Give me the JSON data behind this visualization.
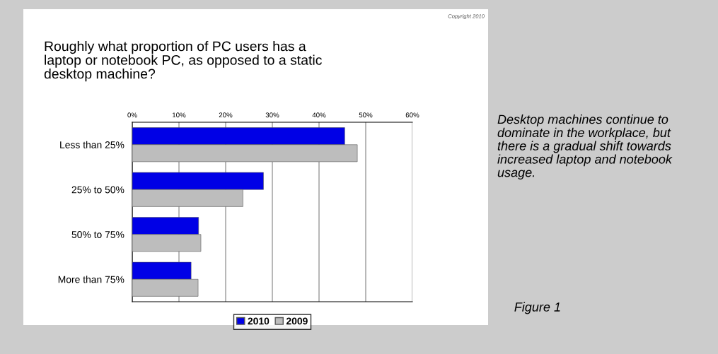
{
  "chart_data": {
    "type": "bar",
    "orientation": "horizontal",
    "title": "Roughly what proportion of PC users has a laptop or notebook PC, as opposed to a static desktop machine?",
    "categories": [
      "Less than 25%",
      "25% to 50%",
      "50% to 75%",
      "More than 75%"
    ],
    "series": [
      {
        "name": "2010",
        "color": "#0000e6",
        "values": [
          45.5,
          28.1,
          14.2,
          12.6
        ]
      },
      {
        "name": "2009",
        "color": "#bdbdbd",
        "values": [
          48.2,
          23.7,
          14.7,
          14.1
        ]
      }
    ],
    "xlim": [
      0,
      60
    ],
    "xticks": [
      {
        "value": 0,
        "label": "0%"
      },
      {
        "value": 10,
        "label": "10%"
      },
      {
        "value": 20,
        "label": "20%"
      },
      {
        "value": 30,
        "label": "30%"
      },
      {
        "value": 40,
        "label": "40%"
      },
      {
        "value": 50,
        "label": "50%"
      },
      {
        "value": 60,
        "label": "60%"
      }
    ],
    "grid": "x",
    "legend": "bottom",
    "annotations": [
      "Desktop machines continue to dominate in the workplace, but there is a gradual shift towards increased laptop and notebook usage.",
      "Figure 1",
      "Copyright 2010"
    ]
  }
}
